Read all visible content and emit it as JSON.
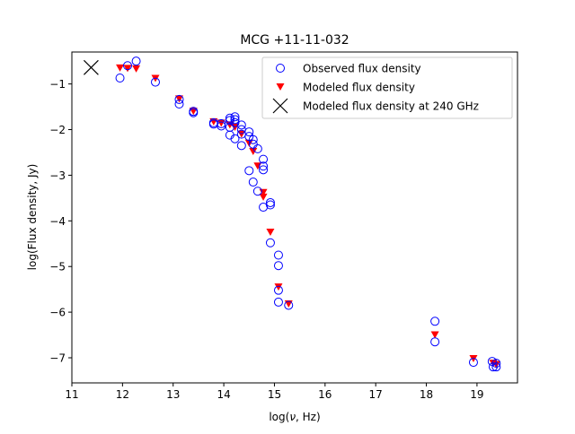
{
  "chart_data": {
    "type": "scatter",
    "title": "MCG +11-11-032",
    "xlabel_prefix": "log(",
    "xlabel_symbol": "ν",
    "xlabel_suffix": ", Hz)",
    "ylabel": "log(Flux density, Jy)",
    "xlim": [
      11.0,
      19.8
    ],
    "ylim": [
      -7.55,
      -0.3
    ],
    "xticks": [
      11,
      12,
      13,
      14,
      15,
      16,
      17,
      18,
      19
    ],
    "yticks": [
      -1,
      -2,
      -3,
      -4,
      -5,
      -6,
      -7
    ],
    "legend_position": "top-right",
    "colors": {
      "observed": "#0000ff",
      "modeled": "#ff0000",
      "marker240": "#000000"
    },
    "series": [
      {
        "name": "Observed flux density",
        "marker": "hollow-circle",
        "points": [
          [
            11.95,
            -0.87
          ],
          [
            12.1,
            -0.6
          ],
          [
            12.27,
            -0.5
          ],
          [
            12.65,
            -0.96
          ],
          [
            13.12,
            -1.34
          ],
          [
            13.12,
            -1.44
          ],
          [
            13.4,
            -1.6
          ],
          [
            13.4,
            -1.63
          ],
          [
            13.8,
            -1.85
          ],
          [
            13.8,
            -1.88
          ],
          [
            13.95,
            -1.87
          ],
          [
            13.95,
            -1.92
          ],
          [
            14.12,
            -1.75
          ],
          [
            14.12,
            -1.8
          ],
          [
            14.12,
            -1.95
          ],
          [
            14.12,
            -2.12
          ],
          [
            14.22,
            -1.72
          ],
          [
            14.22,
            -1.78
          ],
          [
            14.22,
            -1.85
          ],
          [
            14.22,
            -2.2
          ],
          [
            14.35,
            -1.9
          ],
          [
            14.35,
            -2.0
          ],
          [
            14.35,
            -2.1
          ],
          [
            14.35,
            -2.35
          ],
          [
            14.5,
            -2.05
          ],
          [
            14.5,
            -2.15
          ],
          [
            14.5,
            -2.9
          ],
          [
            14.58,
            -2.22
          ],
          [
            14.58,
            -2.32
          ],
          [
            14.58,
            -3.15
          ],
          [
            14.67,
            -2.42
          ],
          [
            14.67,
            -3.35
          ],
          [
            14.78,
            -2.65
          ],
          [
            14.78,
            -2.8
          ],
          [
            14.78,
            -2.88
          ],
          [
            14.78,
            -3.7
          ],
          [
            14.92,
            -3.6
          ],
          [
            14.92,
            -3.65
          ],
          [
            14.92,
            -4.48
          ],
          [
            15.08,
            -4.75
          ],
          [
            15.08,
            -4.98
          ],
          [
            15.08,
            -5.52
          ],
          [
            15.08,
            -5.78
          ],
          [
            15.28,
            -5.85
          ],
          [
            18.17,
            -6.2
          ],
          [
            18.17,
            -6.65
          ],
          [
            18.93,
            -7.1
          ],
          [
            19.3,
            -7.08
          ],
          [
            19.32,
            -7.2
          ],
          [
            19.38,
            -7.12
          ],
          [
            19.38,
            -7.2
          ]
        ]
      },
      {
        "name": "Modeled flux density",
        "marker": "triangle-down",
        "points": [
          [
            11.95,
            -0.65
          ],
          [
            12.1,
            -0.66
          ],
          [
            12.27,
            -0.67
          ],
          [
            12.65,
            -0.88
          ],
          [
            13.12,
            -1.33
          ],
          [
            13.4,
            -1.6
          ],
          [
            13.8,
            -1.83
          ],
          [
            13.95,
            -1.86
          ],
          [
            14.12,
            -1.9
          ],
          [
            14.22,
            -1.95
          ],
          [
            14.35,
            -2.1
          ],
          [
            14.5,
            -2.3
          ],
          [
            14.58,
            -2.48
          ],
          [
            14.67,
            -2.8
          ],
          [
            14.78,
            -3.38
          ],
          [
            14.78,
            -3.48
          ],
          [
            14.92,
            -4.25
          ],
          [
            15.08,
            -5.45
          ],
          [
            15.28,
            -5.82
          ],
          [
            18.17,
            -6.5
          ],
          [
            18.93,
            -7.02
          ],
          [
            19.32,
            -7.12
          ],
          [
            19.38,
            -7.15
          ]
        ]
      },
      {
        "name": "Modeled flux density at 240 GHz",
        "marker": "x",
        "points": [
          [
            11.38,
            -0.64
          ]
        ]
      }
    ]
  }
}
